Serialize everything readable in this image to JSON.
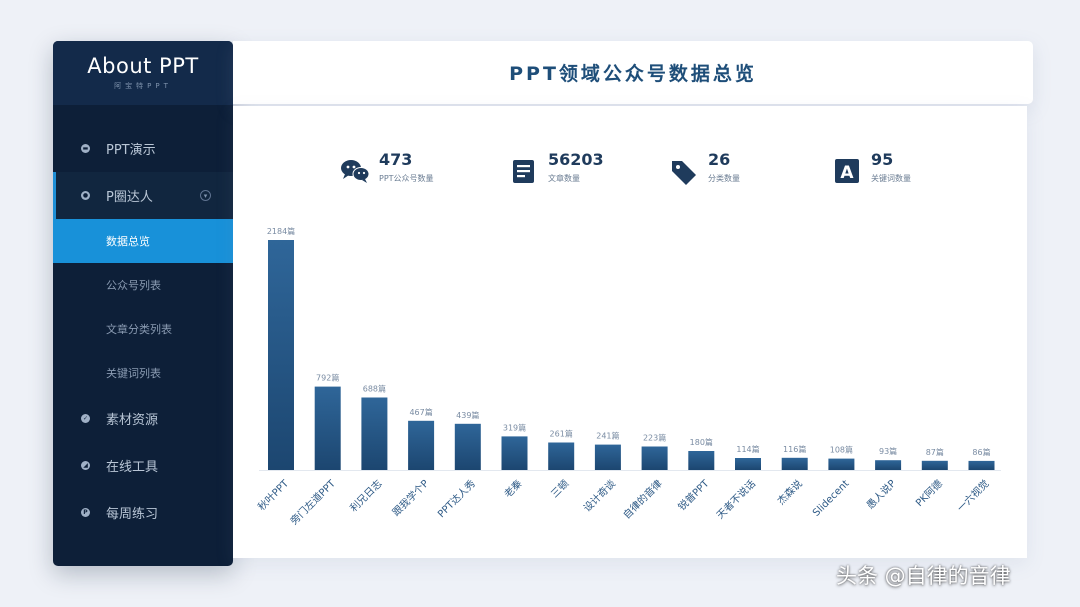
{
  "brand": {
    "title": "About PPT",
    "subtitle": "阿宝特PPT"
  },
  "header": {
    "title": "PPT领域公众号数据总览"
  },
  "sidebar": {
    "items": [
      {
        "label": "PPT演示",
        "icon": "chat-dot-icon"
      },
      {
        "label": "P圈达人",
        "icon": "circle-dot-icon",
        "expanded": true,
        "children": [
          {
            "label": "数据总览",
            "active": true
          },
          {
            "label": "公众号列表"
          },
          {
            "label": "文章分类列表"
          },
          {
            "label": "关键词列表"
          }
        ]
      },
      {
        "label": "素材资源",
        "icon": "check-dot-icon"
      },
      {
        "label": "在线工具",
        "icon": "tool-dot-icon"
      },
      {
        "label": "每周练习",
        "icon": "p-dot-icon"
      }
    ]
  },
  "stats": [
    {
      "value": "473",
      "label": "PPT公众号数量",
      "icon": "wechat-icon"
    },
    {
      "value": "56203",
      "label": "文章数量",
      "icon": "article-icon"
    },
    {
      "value": "26",
      "label": "分类数量",
      "icon": "tag-icon"
    },
    {
      "value": "95",
      "label": "关键词数量",
      "icon": "keyword-a-icon"
    }
  ],
  "chart_data": {
    "type": "bar",
    "categories": [
      "秋叶PPT",
      "旁门左道PPT",
      "利兄日志",
      "跟我学个P",
      "PPT达人秀",
      "老秦",
      "三顿",
      "设计奇谈",
      "自律的音律",
      "锐普PPT",
      "天者不说话",
      "杰森说",
      "Slidecent",
      "愚人说P",
      "PK阿德",
      "一六视觉"
    ],
    "values": [
      2184,
      792,
      688,
      467,
      439,
      319,
      261,
      241,
      223,
      180,
      114,
      116,
      108,
      93,
      87,
      86
    ],
    "value_labels": [
      "2184篇",
      "792篇",
      "688篇",
      "467篇",
      "439篇",
      "319篇",
      "261篇",
      "241篇",
      "223篇",
      "180篇",
      "114篇",
      "116篇",
      "108篇",
      "93篇",
      "87篇",
      "86篇"
    ],
    "ylim": [
      0,
      2184
    ],
    "bar_color_top": "#2f6699",
    "bar_color_bottom": "#1c4670"
  },
  "watermark": "头条 @自律的音律"
}
